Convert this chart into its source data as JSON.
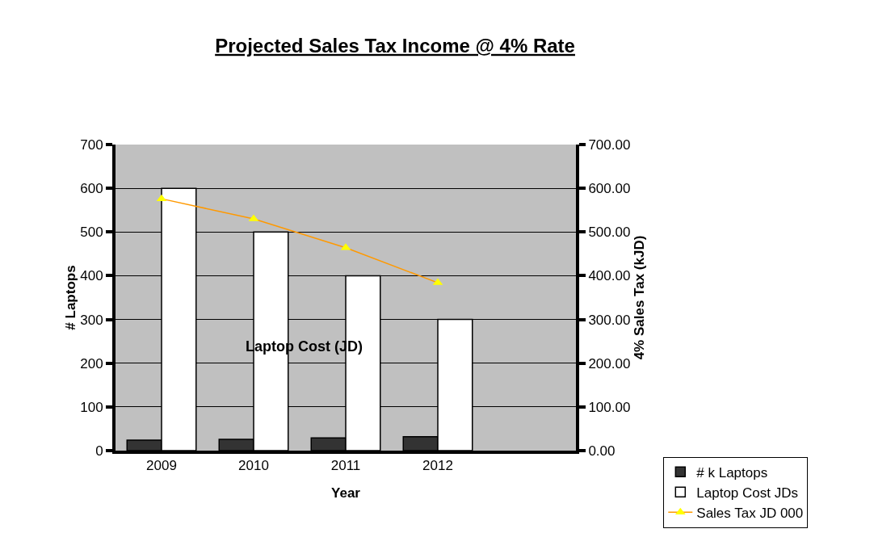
{
  "chart_data": {
    "type": "bar",
    "title": "Projected Sales Tax Income @ 4% Rate",
    "xlabel": "Year",
    "ylabel": "# Laptops",
    "y2label": "4% Sales Tax (kJD)",
    "categories": [
      "2009",
      "2010",
      "2011",
      "2012",
      null
    ],
    "series": [
      {
        "name": "# k Laptops",
        "color": "#333333",
        "values": [
          24,
          26,
          29,
          32,
          null
        ]
      },
      {
        "name": "Laptop Cost JDs",
        "color": "#ffffff",
        "values": [
          600,
          500,
          400,
          300,
          null
        ]
      },
      {
        "name": "Sales Tax JD 000",
        "type": "line",
        "axis": "y2",
        "color": "#ff9900",
        "marker": "triangle",
        "values": [
          576,
          530,
          464,
          384,
          null
        ]
      }
    ],
    "annotations": [
      "Laptop Cost (JD)"
    ],
    "ylim": [
      0,
      700
    ],
    "yticks": [
      0,
      100,
      200,
      300,
      400,
      500,
      600,
      700
    ],
    "y2lim": [
      0,
      700
    ],
    "y2ticks": [
      {
        "value": 0,
        "label": "0.00"
      },
      {
        "value": 100,
        "label": "100.00"
      },
      {
        "value": 200,
        "label": "200.00"
      },
      {
        "value": 300,
        "label": "300.00"
      },
      {
        "value": 400,
        "label": "400.00"
      },
      {
        "value": 500,
        "label": "500.00"
      },
      {
        "value": 600,
        "label": "600.00"
      },
      {
        "value": 700,
        "label": "700.00"
      }
    ],
    "grid": "y",
    "legend": "bottom right"
  }
}
